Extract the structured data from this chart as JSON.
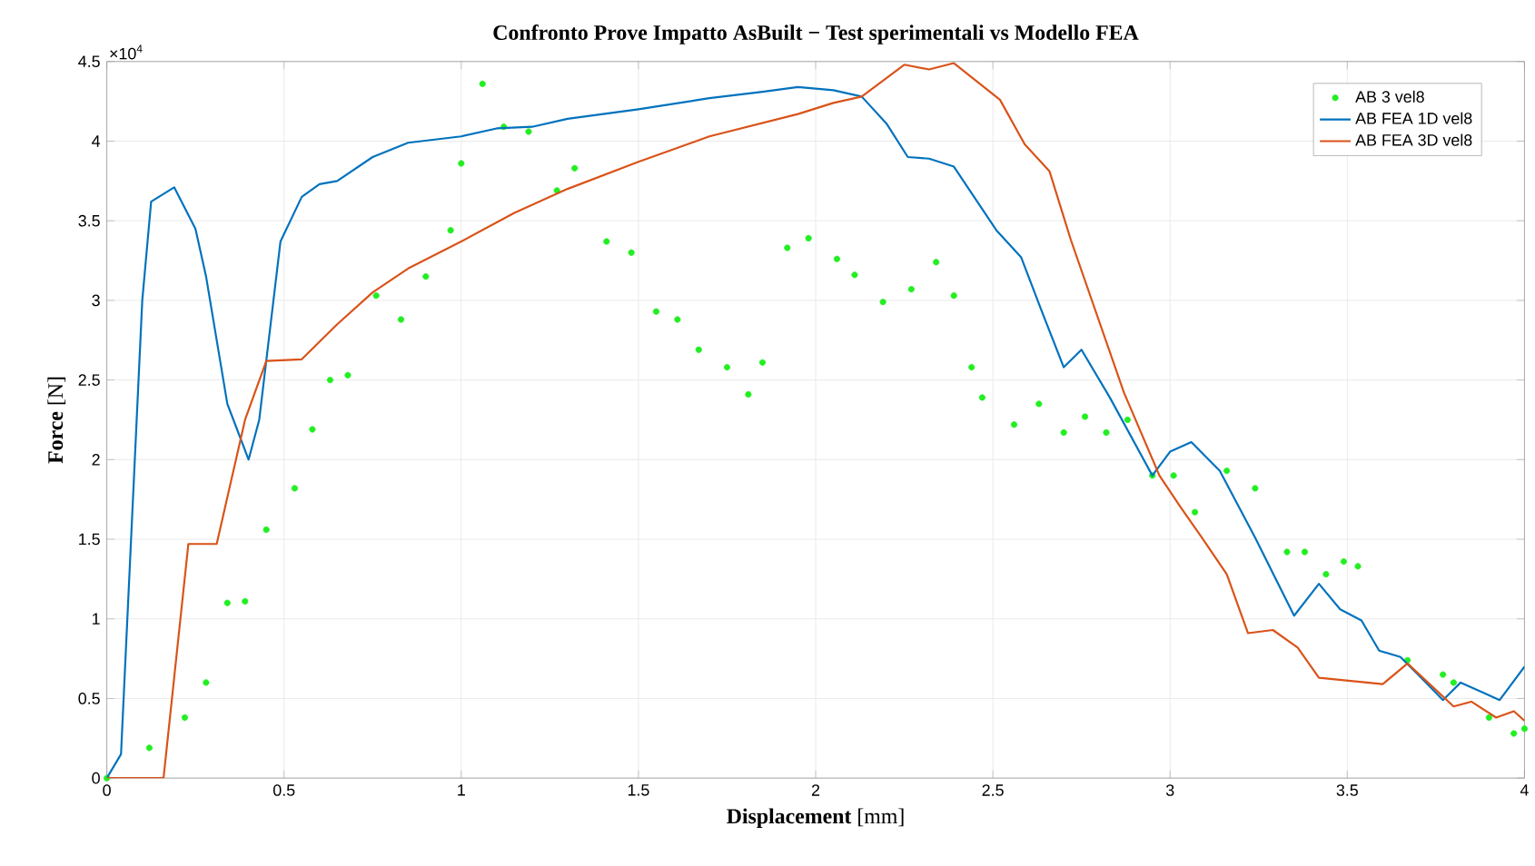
{
  "chart_data": {
    "type": "line",
    "title": "Confronto Prove Impatto AsBuilt − Test sperimentali vs Modello FEA",
    "xlabel": "**Displacement** [mm]",
    "ylabel": "**Force** [N]",
    "annotations": [
      "×10$^{4}$"
    ],
    "xlim": [
      0,
      4
    ],
    "xticks": [
      0,
      0.5,
      1,
      1.5,
      2,
      2.5,
      3,
      3.5,
      4
    ],
    "ylim": [
      0,
      4.5
    ],
    "yticks": [
      0,
      0.5,
      1,
      1.5,
      2,
      2.5,
      3,
      3.5,
      4,
      4.5
    ],
    "grid": true,
    "legend": "top right",
    "series": [
      {
        "name": "AB 3 vel8",
        "type": "scatter",
        "marker": "circle",
        "color": "#22ee22",
        "x": [
          0,
          0.12,
          0.22,
          0.28,
          0.34,
          0.39,
          0.45,
          0.53,
          0.58,
          0.63,
          0.68,
          0.76,
          0.83,
          0.9,
          0.97,
          1.0,
          1.06,
          1.12,
          1.19,
          1.27,
          1.32,
          1.41,
          1.48,
          1.55,
          1.61,
          1.67,
          1.75,
          1.81,
          1.85,
          1.92,
          1.98,
          2.06,
          2.11,
          2.19,
          2.27,
          2.34,
          2.39,
          2.44,
          2.47,
          2.56,
          2.63,
          2.7,
          2.76,
          2.82,
          2.88,
          2.95,
          3.01,
          3.07,
          3.16,
          3.24,
          3.33,
          3.38,
          3.44,
          3.49,
          3.53,
          3.67,
          3.77,
          3.8,
          3.9,
          3.97,
          4.0
        ],
        "values": [
          0,
          0.19,
          0.38,
          0.6,
          1.1,
          1.11,
          1.56,
          1.82,
          2.19,
          2.5,
          2.53,
          3.03,
          2.88,
          3.15,
          3.44,
          3.86,
          4.36,
          4.09,
          4.06,
          3.69,
          3.83,
          3.37,
          3.3,
          2.93,
          2.88,
          2.69,
          2.58,
          2.41,
          2.61,
          3.33,
          3.39,
          3.26,
          3.16,
          2.99,
          3.07,
          3.24,
          3.03,
          2.58,
          2.39,
          2.22,
          2.35,
          2.17,
          2.27,
          2.17,
          2.25,
          1.9,
          1.9,
          1.67,
          1.93,
          1.82,
          1.42,
          1.42,
          1.28,
          1.36,
          1.33,
          0.74,
          0.65,
          0.6,
          0.38,
          0.28,
          0.31
        ]
      },
      {
        "name": "AB FEA 1D vel8",
        "type": "line",
        "marker": "none",
        "line_style": "solid",
        "color": "#0072bd",
        "x": [
          0,
          0.04,
          0.1,
          0.125,
          0.19,
          0.25,
          0.28,
          0.34,
          0.4,
          0.43,
          0.49,
          0.55,
          0.6,
          0.65,
          0.75,
          0.85,
          1.0,
          1.1,
          1.2,
          1.3,
          1.4,
          1.5,
          1.7,
          1.85,
          1.95,
          2.05,
          2.13,
          2.2,
          2.26,
          2.32,
          2.39,
          2.51,
          2.58,
          2.64,
          2.7,
          2.75,
          2.83,
          2.95,
          3.0,
          3.06,
          3.14,
          3.24,
          3.35,
          3.42,
          3.48,
          3.54,
          3.59,
          3.65,
          3.7,
          3.77,
          3.82,
          3.93,
          4.0
        ],
        "values": [
          0,
          0.15,
          3.0,
          3.62,
          3.71,
          3.45,
          3.15,
          2.35,
          2.0,
          2.25,
          3.37,
          3.65,
          3.73,
          3.75,
          3.9,
          3.99,
          4.03,
          4.08,
          4.09,
          4.14,
          4.17,
          4.2,
          4.27,
          4.31,
          4.34,
          4.32,
          4.28,
          4.11,
          3.9,
          3.89,
          3.84,
          3.44,
          3.27,
          2.92,
          2.58,
          2.69,
          2.39,
          1.9,
          2.05,
          2.11,
          1.93,
          1.51,
          1.02,
          1.22,
          1.06,
          0.99,
          0.8,
          0.76,
          0.65,
          0.49,
          0.6,
          0.49,
          0.7
        ]
      },
      {
        "name": "AB FEA 3D vel8",
        "type": "line",
        "marker": "none",
        "line_style": "solid",
        "color": "#d95319",
        "x": [
          0,
          0.16,
          0.23,
          0.31,
          0.39,
          0.45,
          0.55,
          0.65,
          0.75,
          0.85,
          1.0,
          1.15,
          1.3,
          1.5,
          1.7,
          1.95,
          2.05,
          2.13,
          2.25,
          2.32,
          2.39,
          2.52,
          2.59,
          2.66,
          2.72,
          2.87,
          2.97,
          3.03,
          3.09,
          3.16,
          3.22,
          3.29,
          3.36,
          3.42,
          3.6,
          3.67,
          3.8,
          3.85,
          3.92,
          3.97,
          4.0
        ],
        "values": [
          0,
          0,
          1.47,
          1.47,
          2.25,
          2.62,
          2.63,
          2.85,
          3.05,
          3.2,
          3.37,
          3.55,
          3.7,
          3.87,
          4.03,
          4.17,
          4.24,
          4.28,
          4.48,
          4.45,
          4.49,
          4.26,
          3.98,
          3.81,
          3.38,
          2.42,
          1.9,
          1.7,
          1.51,
          1.28,
          0.91,
          0.93,
          0.82,
          0.63,
          0.59,
          0.72,
          0.45,
          0.48,
          0.38,
          0.42,
          0.36
        ]
      }
    ]
  }
}
